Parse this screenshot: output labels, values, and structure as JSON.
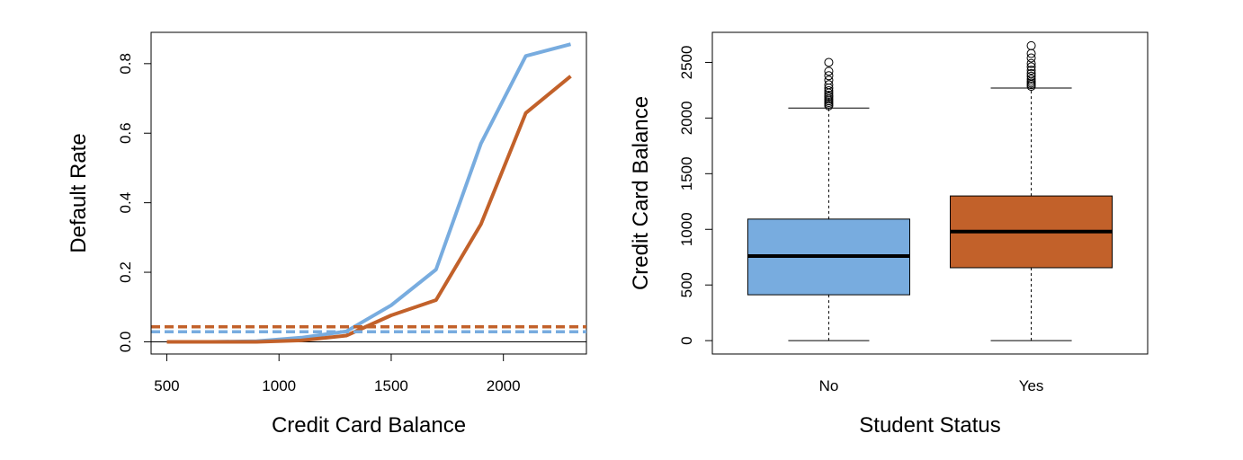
{
  "chart_data": [
    {
      "type": "line",
      "xlabel": "Credit Card Balance",
      "ylabel": "Default Rate",
      "xlim": [
        430,
        2370
      ],
      "ylim": [
        -0.035,
        0.89
      ],
      "x_ticks": [
        500,
        1000,
        1500,
        2000
      ],
      "y_ticks": [
        0.0,
        0.2,
        0.4,
        0.6,
        0.8
      ],
      "x_tick_labels": [
        "500",
        "1000",
        "1500",
        "2000"
      ],
      "y_tick_labels": [
        "0.0",
        "0.2",
        "0.4",
        "0.6",
        "0.8"
      ],
      "grid": false,
      "reference_line": {
        "y": 0.0,
        "color": "#000000"
      },
      "series": [
        {
          "color": "#78acdf",
          "style": "solid",
          "x": [
            500,
            700,
            900,
            1100,
            1300,
            1500,
            1700,
            1900,
            2100,
            2300
          ],
          "y": [
            0.0,
            0.0,
            0.002,
            0.012,
            0.03,
            0.105,
            0.208,
            0.57,
            0.822,
            0.856
          ]
        },
        {
          "color": "#c2612a",
          "style": "solid",
          "x": [
            500,
            700,
            900,
            1100,
            1300,
            1500,
            1700,
            1900,
            2100,
            2300
          ],
          "y": [
            0.0,
            0.0,
            0.0,
            0.004,
            0.018,
            0.076,
            0.12,
            0.338,
            0.658,
            0.764
          ]
        },
        {
          "color": "#c2612a",
          "style": "dashed",
          "x": [
            430,
            2370
          ],
          "y": [
            0.043,
            0.043
          ]
        },
        {
          "color": "#78acdf",
          "style": "dashed",
          "x": [
            430,
            2370
          ],
          "y": [
            0.029,
            0.029
          ]
        }
      ]
    },
    {
      "type": "box",
      "xlabel": "Student Status",
      "ylabel": "Credit Card Balance",
      "ylim": [
        -120,
        2770
      ],
      "y_ticks": [
        0,
        500,
        1000,
        1500,
        2000,
        2500
      ],
      "y_tick_labels": [
        "0",
        "500",
        "1000",
        "1500",
        "2000",
        "2500"
      ],
      "categories": [
        "No",
        "Yes"
      ],
      "grid": false,
      "boxes": [
        {
          "category": "No",
          "color": "#78acdf",
          "whisker_low": 0,
          "q1": 412,
          "median": 760,
          "q3": 1092,
          "whisker_high": 2090,
          "outliers": [
            2110,
            2125,
            2140,
            2155,
            2170,
            2190,
            2205,
            2225,
            2245,
            2270,
            2300,
            2340,
            2380,
            2420,
            2500
          ]
        },
        {
          "category": "Yes",
          "color": "#c2612a",
          "whisker_low": 0,
          "q1": 655,
          "median": 980,
          "q3": 1300,
          "whisker_high": 2270,
          "outliers": [
            2285,
            2300,
            2315,
            2330,
            2350,
            2375,
            2400,
            2430,
            2460,
            2490,
            2540,
            2580,
            2650
          ]
        }
      ]
    }
  ]
}
